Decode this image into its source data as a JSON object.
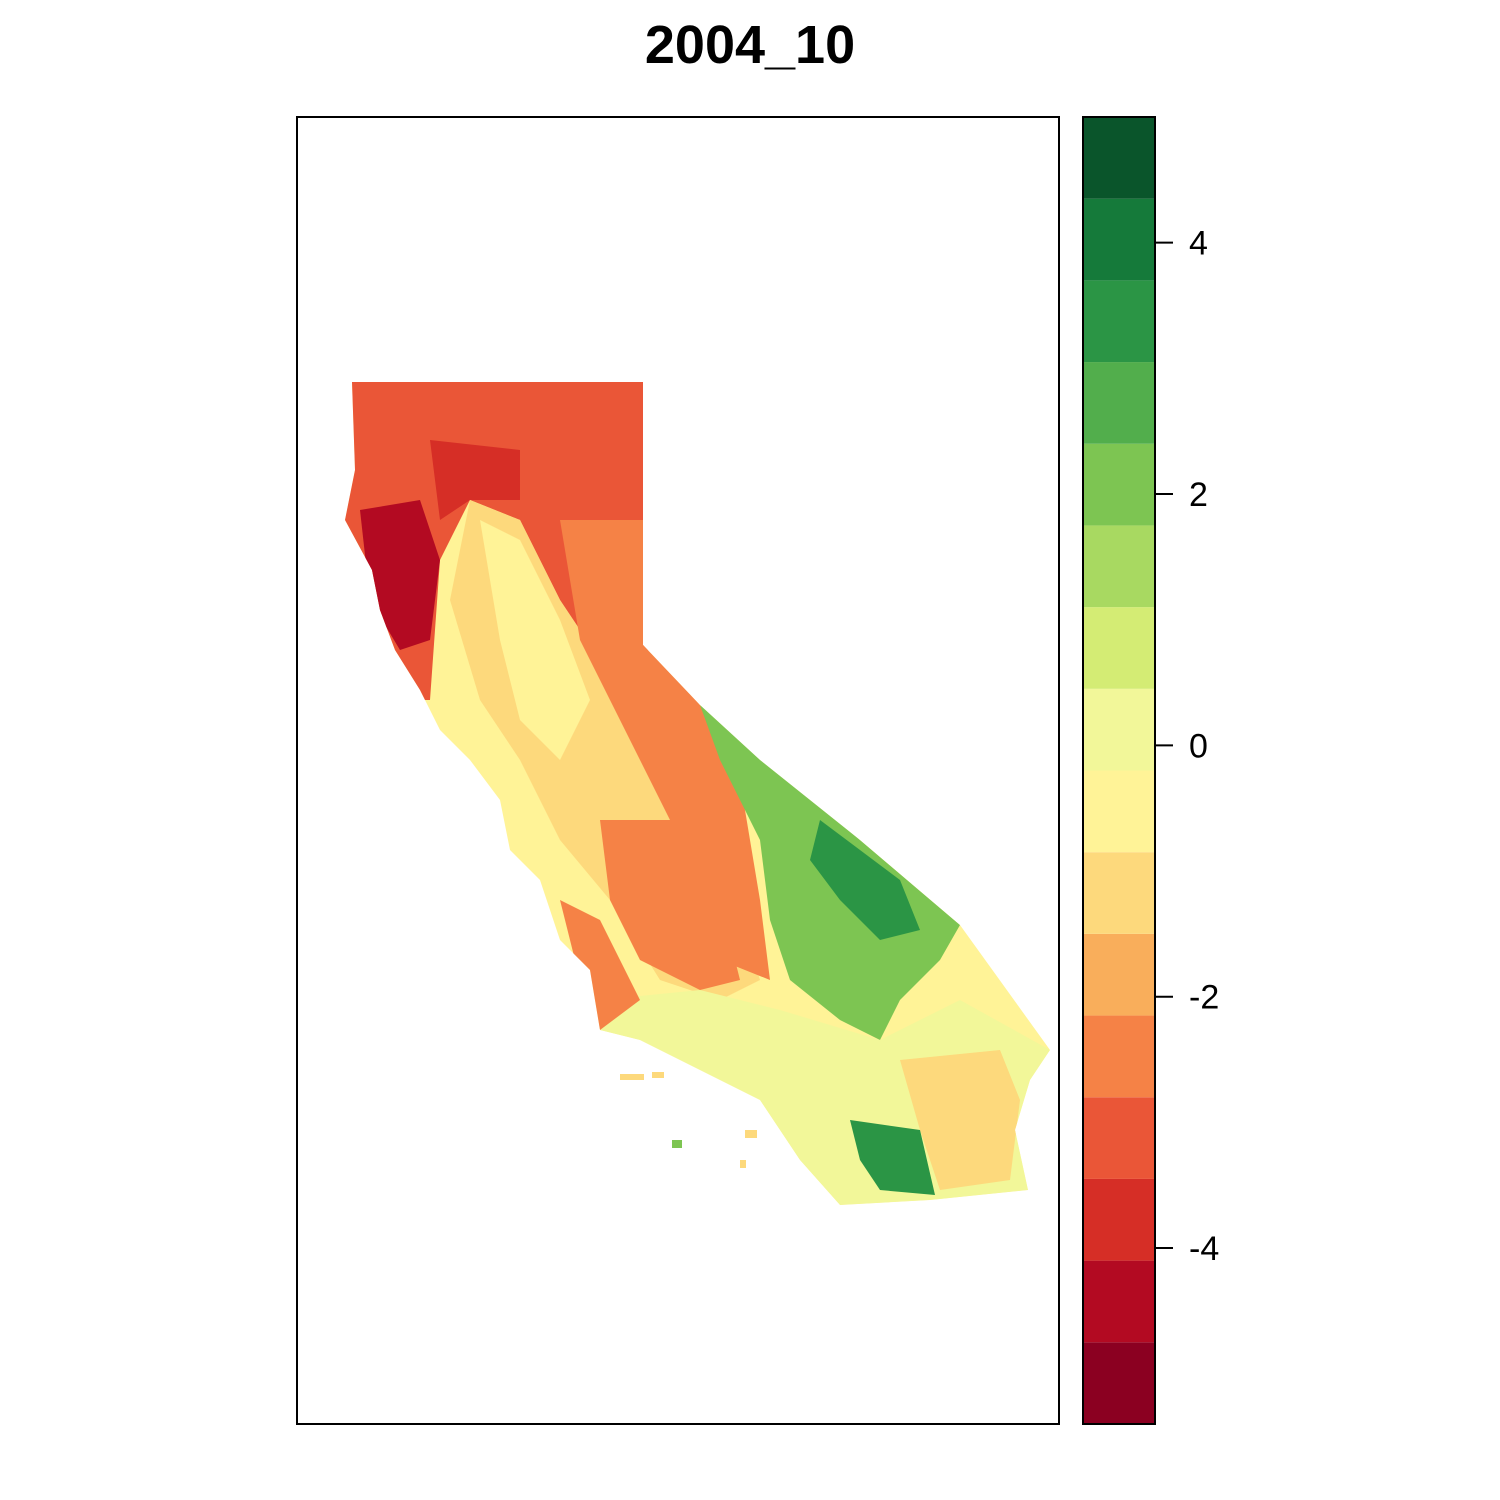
{
  "title": "2004_10",
  "legend": {
    "ticks": [
      {
        "value": 4,
        "label": "4"
      },
      {
        "value": 2,
        "label": "2"
      },
      {
        "value": 0,
        "label": "0"
      },
      {
        "value": -2,
        "label": "-2"
      },
      {
        "value": -4,
        "label": "-4"
      }
    ],
    "range": [
      -5.4,
      5.0
    ],
    "classes": [
      {
        "from": -5.4,
        "to": -4.75,
        "color": "#8b0021"
      },
      {
        "from": -4.75,
        "to": -4.1,
        "color": "#b30a22"
      },
      {
        "from": -4.1,
        "to": -3.45,
        "color": "#d62e26"
      },
      {
        "from": -3.45,
        "to": -2.8,
        "color": "#ea5637"
      },
      {
        "from": -2.8,
        "to": -2.15,
        "color": "#f58246"
      },
      {
        "from": -2.15,
        "to": -1.5,
        "color": "#f9ae5b"
      },
      {
        "from": -1.5,
        "to": -0.85,
        "color": "#fdd97c"
      },
      {
        "from": -0.85,
        "to": -0.2,
        "color": "#fff397"
      },
      {
        "from": -0.2,
        "to": 0.45,
        "color": "#f2f799"
      },
      {
        "from": 0.45,
        "to": 1.1,
        "color": "#d4ec74"
      },
      {
        "from": 1.1,
        "to": 1.75,
        "color": "#a8d961"
      },
      {
        "from": 1.75,
        "to": 2.4,
        "color": "#7dc552"
      },
      {
        "from": 2.4,
        "to": 3.05,
        "color": "#52ae4c"
      },
      {
        "from": 3.05,
        "to": 3.7,
        "color": "#2b9545"
      },
      {
        "from": 3.7,
        "to": 4.35,
        "color": "#157a3a"
      },
      {
        "from": 4.35,
        "to": 5.0,
        "color": "#0a552b"
      }
    ]
  },
  "map": {
    "region_colors": {
      "far_north": "#ea5637",
      "northwest_dark": "#b30a22",
      "valley": "#fdd97c",
      "valley_light": "#fff397",
      "sierra": "#f58246",
      "east_green": "#7dc552",
      "east_dark": "#2b9545",
      "south_light": "#f2f799",
      "south_mid": "#fdd97c"
    }
  }
}
